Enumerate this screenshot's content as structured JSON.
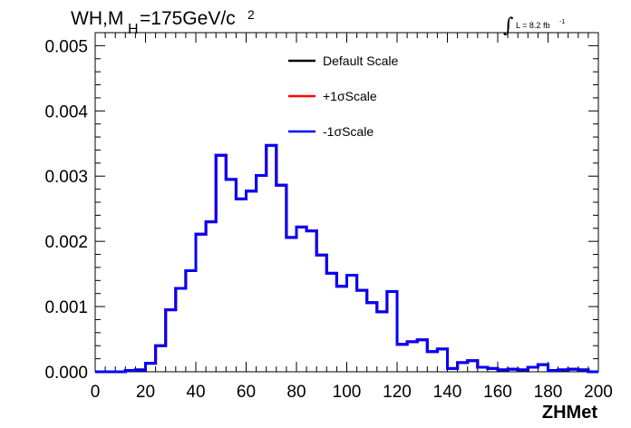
{
  "chart_data": {
    "type": "line",
    "title": {
      "prefix": "WH,M",
      "subscript": "H",
      "main": "=175GeV/c",
      "superscript": "2"
    },
    "luminosity": {
      "integral": "∫",
      "text": "L = 8.2 fb",
      "superscript": "-1"
    },
    "xlabel": "ZHMet",
    "ylabel": "",
    "xlim": [
      0,
      200
    ],
    "ylim": [
      0,
      0.0052
    ],
    "x_ticks": [
      "0",
      "20",
      "40",
      "60",
      "80",
      "100",
      "120",
      "140",
      "160",
      "180",
      "200"
    ],
    "y_ticks": [
      "0.000",
      "0.001",
      "0.002",
      "0.003",
      "0.004",
      "0.005"
    ],
    "bin_width": 4,
    "bins_x_start": [
      0,
      4,
      8,
      12,
      16,
      20,
      24,
      28,
      32,
      36,
      40,
      44,
      48,
      52,
      56,
      60,
      64,
      68,
      72,
      76,
      80,
      84,
      88,
      92,
      96,
      100,
      104,
      108,
      112,
      116,
      120,
      124,
      128,
      132,
      136,
      140,
      144,
      148,
      152,
      156,
      160,
      164,
      168,
      172,
      176,
      180,
      184,
      188,
      192,
      196
    ],
    "series": [
      {
        "name": "Default Scale",
        "color": "#000000",
        "values": [
          0.0,
          0.0,
          0.0,
          2e-05,
          3e-05,
          0.00013,
          0.0004,
          0.00095,
          0.00128,
          0.00155,
          0.00211,
          0.0023,
          0.00332,
          0.00295,
          0.00265,
          0.00277,
          0.00301,
          0.00347,
          0.00286,
          0.00206,
          0.00222,
          0.00216,
          0.00179,
          0.00151,
          0.00131,
          0.00148,
          0.00125,
          0.00106,
          0.00092,
          0.00123,
          0.00042,
          0.00046,
          0.00049,
          0.00031,
          0.00035,
          5e-05,
          0.00014,
          0.00017,
          7e-05,
          5e-05,
          3e-05,
          4e-05,
          3e-05,
          7e-05,
          0.00011,
          2e-05,
          3e-05,
          4e-05,
          3e-05,
          0.0
        ]
      },
      {
        "name": "+1σScale",
        "color": "#ff0000",
        "values": [
          0.0,
          0.0,
          0.0,
          2e-05,
          3e-05,
          0.00013,
          0.0004,
          0.00095,
          0.00128,
          0.00155,
          0.00211,
          0.0023,
          0.00332,
          0.00295,
          0.00265,
          0.00277,
          0.00301,
          0.00347,
          0.00286,
          0.00206,
          0.00222,
          0.00216,
          0.00179,
          0.00151,
          0.00131,
          0.00148,
          0.00125,
          0.00106,
          0.00092,
          0.00123,
          0.00042,
          0.00046,
          0.00049,
          0.00031,
          0.00035,
          5e-05,
          0.00014,
          0.00017,
          7e-05,
          5e-05,
          3e-05,
          4e-05,
          3e-05,
          7e-05,
          0.00011,
          2e-05,
          3e-05,
          4e-05,
          3e-05,
          0.0
        ]
      },
      {
        "name": "-1σScale",
        "color": "#0000ff",
        "values": [
          0.0,
          0.0,
          0.0,
          2e-05,
          3e-05,
          0.00013,
          0.0004,
          0.00095,
          0.00128,
          0.00155,
          0.00211,
          0.0023,
          0.00332,
          0.00295,
          0.00265,
          0.00277,
          0.00301,
          0.00347,
          0.00286,
          0.00206,
          0.00222,
          0.00216,
          0.00179,
          0.00151,
          0.00131,
          0.00148,
          0.00125,
          0.00106,
          0.00092,
          0.00123,
          0.00042,
          0.00046,
          0.00049,
          0.00031,
          0.00035,
          5e-05,
          0.00014,
          0.00017,
          7e-05,
          5e-05,
          3e-05,
          4e-05,
          3e-05,
          7e-05,
          0.00011,
          2e-05,
          3e-05,
          4e-05,
          3e-05,
          0.0
        ]
      }
    ],
    "legend": {
      "placement": "top-center",
      "border": false
    },
    "grid": false
  }
}
